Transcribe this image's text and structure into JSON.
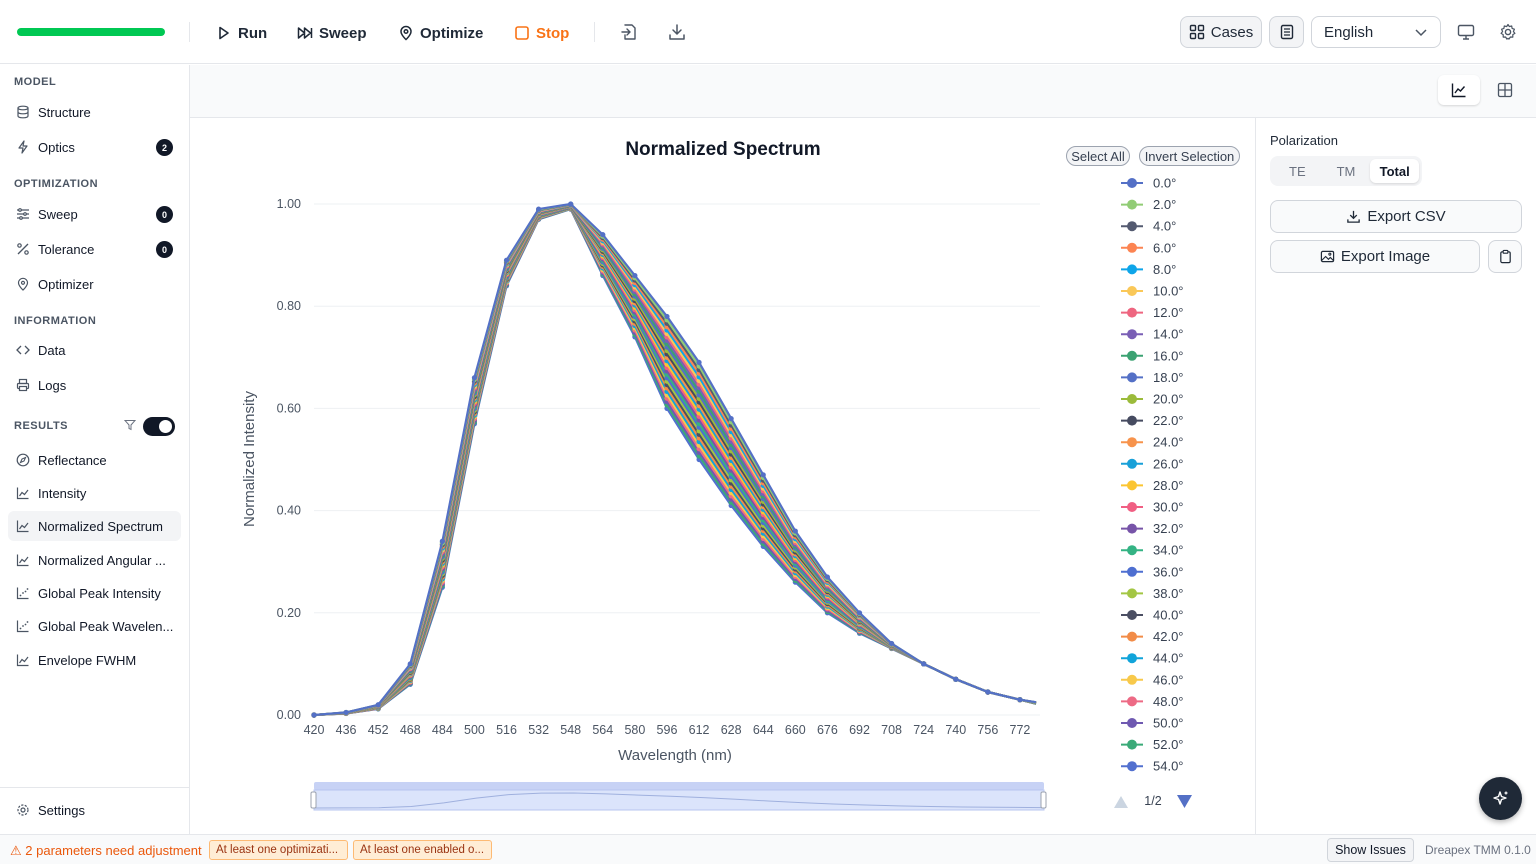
{
  "toolbar": {
    "run": "Run",
    "sweep": "Sweep",
    "optimize": "Optimize",
    "stop": "Stop",
    "cases": "Cases",
    "language": "English",
    "progress_fraction": 1.0,
    "colors": {
      "progress": "#00c853",
      "stop": "#f97316"
    }
  },
  "sidebar": {
    "model_header": "MODEL",
    "structure": "Structure",
    "optics": "Optics",
    "optics_badge": "2",
    "optimization_header": "OPTIMIZATION",
    "sweep": "Sweep",
    "sweep_badge": "0",
    "tolerance": "Tolerance",
    "tolerance_badge": "0",
    "optimizer": "Optimizer",
    "information_header": "INFORMATION",
    "data": "Data",
    "logs": "Logs",
    "results_header": "RESULTS",
    "results_toggle_on": true,
    "results": [
      "Reflectance",
      "Intensity",
      "Normalized Spectrum",
      "Normalized Angular ...",
      "Global Peak Intensity",
      "Global Peak Wavelen...",
      "Envelope FWHM"
    ],
    "active_result": "Normalized Spectrum",
    "settings": "Settings"
  },
  "chart_controls": {
    "select_all": "Select All",
    "invert_selection": "Invert Selection",
    "legend_page": "1/2"
  },
  "right_panel": {
    "polarization_label": "Polarization",
    "modes": [
      "TE",
      "TM",
      "Total"
    ],
    "active_mode": "Total",
    "export_csv": "Export CSV",
    "export_image": "Export Image"
  },
  "status_bar": {
    "warning": "⚠ 2 parameters need adjustment",
    "chip1": "At least one optimizati...",
    "chip2": "At least one enabled o...",
    "show_issues": "Show Issues",
    "version": "Dreapex TMM 0.1.0"
  },
  "chart_data": {
    "type": "line",
    "title": "Normalized Spectrum",
    "xlabel": "Wavelength (nm)",
    "ylabel": "Normalized Intensity",
    "xlim": [
      420,
      780
    ],
    "ylim": [
      0,
      1.0
    ],
    "x_ticks": [
      420,
      436,
      452,
      468,
      484,
      500,
      516,
      532,
      548,
      564,
      580,
      596,
      612,
      628,
      644,
      660,
      676,
      692,
      708,
      724,
      740,
      756,
      772
    ],
    "y_ticks": [
      "0.00",
      "0.20",
      "0.40",
      "0.60",
      "0.80",
      "1.00"
    ],
    "x": [
      420,
      436,
      452,
      468,
      484,
      500,
      516,
      532,
      548,
      564,
      580,
      596,
      612,
      628,
      644,
      660,
      676,
      692,
      708,
      724,
      740,
      756,
      772,
      780
    ],
    "series_first": {
      "name": "0.0°",
      "values": [
        0.0,
        0.005,
        0.02,
        0.1,
        0.34,
        0.66,
        0.89,
        0.99,
        1.0,
        0.94,
        0.86,
        0.78,
        0.69,
        0.58,
        0.47,
        0.36,
        0.27,
        0.2,
        0.14,
        0.1,
        0.07,
        0.045,
        0.03,
        0.025
      ]
    },
    "series_last": {
      "name": "54.0°",
      "values": [
        0.0,
        0.003,
        0.012,
        0.06,
        0.25,
        0.57,
        0.84,
        0.97,
        0.99,
        0.86,
        0.74,
        0.6,
        0.5,
        0.41,
        0.33,
        0.26,
        0.2,
        0.16,
        0.13,
        0.1,
        0.07,
        0.045,
        0.03,
        0.022
      ]
    },
    "legend": [
      "0.0°",
      "2.0°",
      "4.0°",
      "6.0°",
      "8.0°",
      "10.0°",
      "12.0°",
      "14.0°",
      "16.0°",
      "18.0°",
      "20.0°",
      "22.0°",
      "24.0°",
      "26.0°",
      "28.0°",
      "30.0°",
      "32.0°",
      "34.0°",
      "36.0°",
      "38.0°",
      "40.0°",
      "42.0°",
      "44.0°",
      "46.0°",
      "48.0°",
      "50.0°",
      "52.0°",
      "54.0°"
    ],
    "palette": [
      "#5470c6",
      "#91cc75",
      "#545a70",
      "#fc8452",
      "#0ea5e9",
      "#fac858",
      "#ee6680",
      "#7a5fb5",
      "#3ba272",
      "#5470c6",
      "#9bbb3b",
      "#464b60",
      "#f7934c",
      "#19a0d8",
      "#fbc531",
      "#f05f83",
      "#7754a8",
      "#34b384",
      "#4e6fd1",
      "#a3c644",
      "#4b4f63",
      "#f28c48",
      "#11a4da",
      "#f8c94b",
      "#ed6a85",
      "#6f59b1",
      "#3aaa78",
      "#5270cf"
    ],
    "legend_placement": "right",
    "grid": true,
    "data_zoom": true
  }
}
